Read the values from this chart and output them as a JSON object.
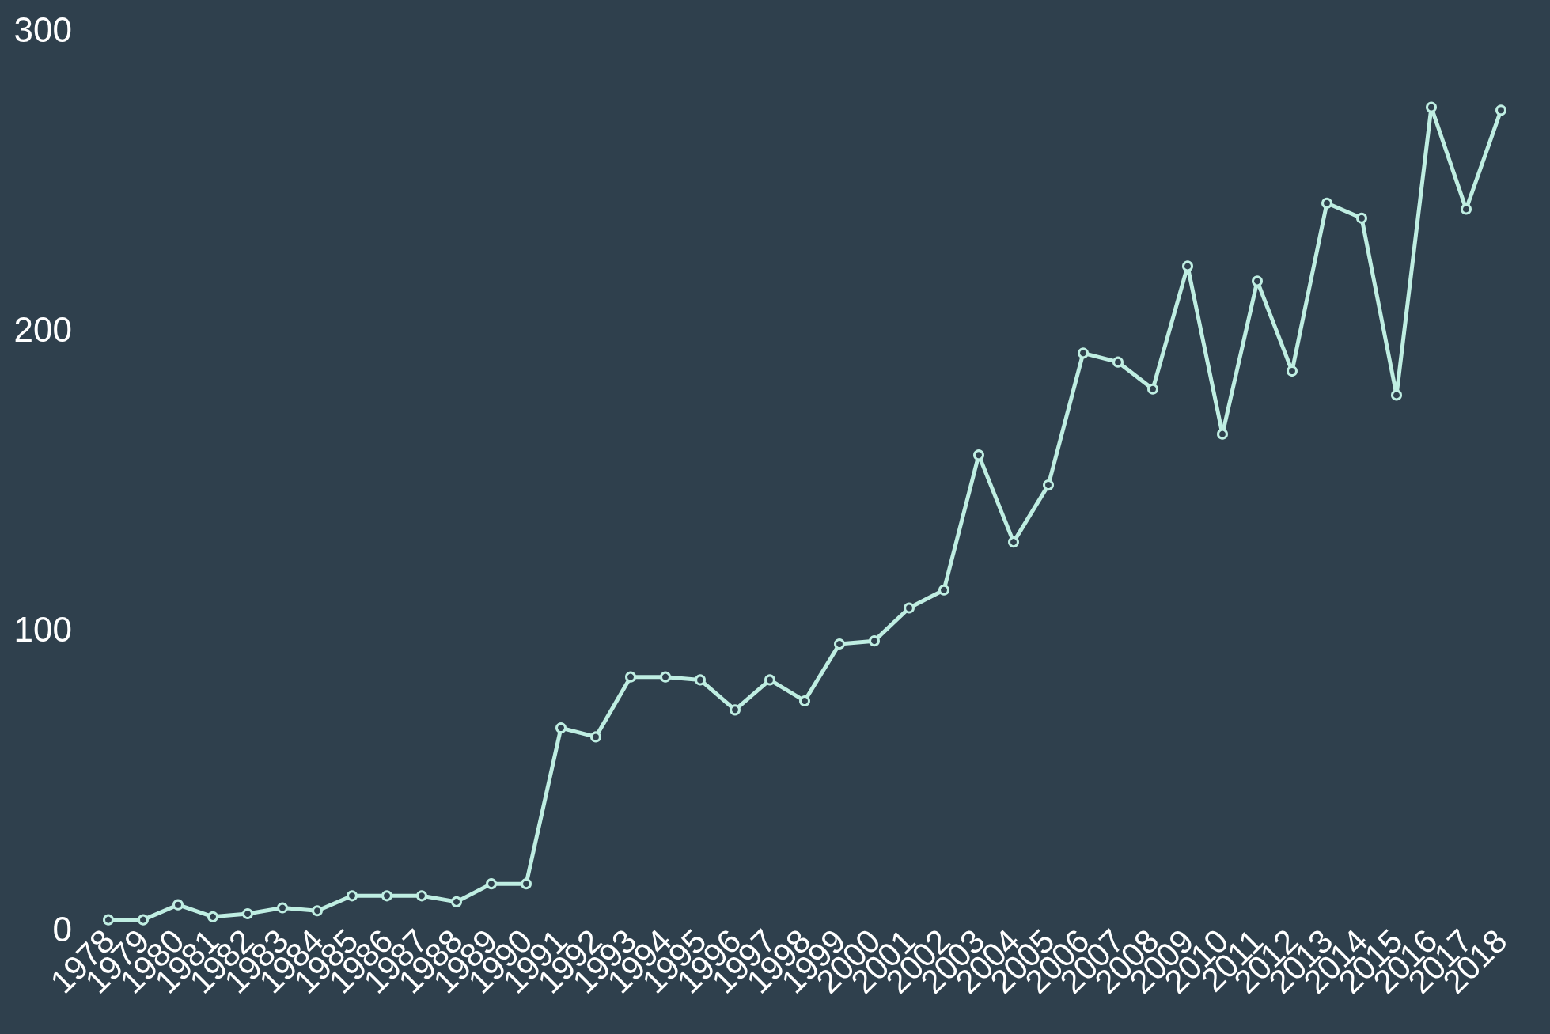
{
  "chart_data": {
    "type": "line",
    "categories": [
      "1978",
      "1979",
      "1980",
      "1981",
      "1982",
      "1983",
      "1984",
      "1985",
      "1986",
      "1987",
      "1988",
      "1989",
      "1990",
      "1991",
      "1992",
      "1993",
      "1994",
      "1995",
      "1996",
      "1997",
      "1998",
      "1999",
      "2000",
      "2001",
      "2002",
      "2003",
      "2004",
      "2005",
      "2006",
      "2007",
      "2008",
      "2009",
      "2010",
      "2011",
      "2012",
      "2013",
      "2014",
      "2015",
      "2016",
      "2017",
      "2018"
    ],
    "series": [
      {
        "color": "#bfeee2",
        "values": [
          3,
          3,
          8,
          4,
          5,
          7,
          6,
          11,
          11,
          11,
          9,
          15,
          15,
          67,
          64,
          84,
          84,
          83,
          73,
          83,
          76,
          95,
          96,
          107,
          113,
          158,
          129,
          148,
          192,
          189,
          180,
          221,
          165,
          216,
          186,
          242,
          237,
          178,
          274,
          240,
          273
        ]
      }
    ],
    "ylim": [
      0,
      300
    ],
    "yticks": [
      0,
      100,
      200,
      300
    ],
    "marker": "circle",
    "line_style": "solid"
  }
}
